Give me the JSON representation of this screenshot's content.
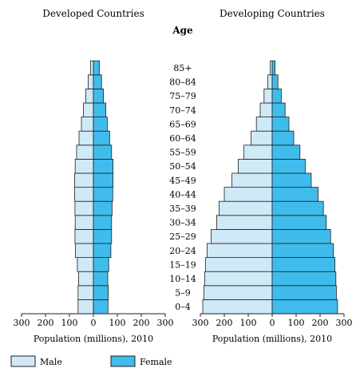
{
  "chart_data": {
    "type": "population-pyramid",
    "age_title": "Age",
    "age_groups": [
      "0–4",
      "5–9",
      "10–14",
      "15–19",
      "20–24",
      "25–29",
      "30–34",
      "35–39",
      "40–44",
      "45–49",
      "50–54",
      "55–59",
      "60–64",
      "65–69",
      "70–74",
      "75–79",
      "80–84",
      "85+"
    ],
    "colors": {
      "male": "#cfe9f6",
      "female": "#3fbceb",
      "outline": "#231f20"
    },
    "xlim": [
      -300,
      300
    ],
    "ticks": [
      300,
      200,
      100,
      0,
      100,
      200,
      300
    ],
    "panels": [
      {
        "title": "Developed Countries",
        "xlabel": "Population (millions), 2010",
        "male": [
          64,
          64,
          62,
          67,
          75,
          77,
          76,
          77,
          78,
          78,
          76,
          70,
          60,
          50,
          42,
          32,
          22,
          12
        ],
        "female": [
          61,
          62,
          60,
          64,
          73,
          76,
          76,
          78,
          81,
          82,
          82,
          76,
          68,
          58,
          52,
          42,
          34,
          25
        ]
      },
      {
        "title": "Developing Countries",
        "xlabel": "Population (millions), 2010",
        "male": [
          290,
          285,
          282,
          278,
          272,
          255,
          232,
          222,
          200,
          168,
          142,
          118,
          88,
          66,
          50,
          34,
          18,
          8
        ],
        "female": [
          273,
          268,
          266,
          262,
          256,
          244,
          226,
          214,
          192,
          163,
          138,
          116,
          90,
          70,
          54,
          38,
          24,
          12
        ]
      }
    ],
    "legend": [
      {
        "label": "Male",
        "key": "male"
      },
      {
        "label": "Female",
        "key": "female"
      }
    ]
  }
}
